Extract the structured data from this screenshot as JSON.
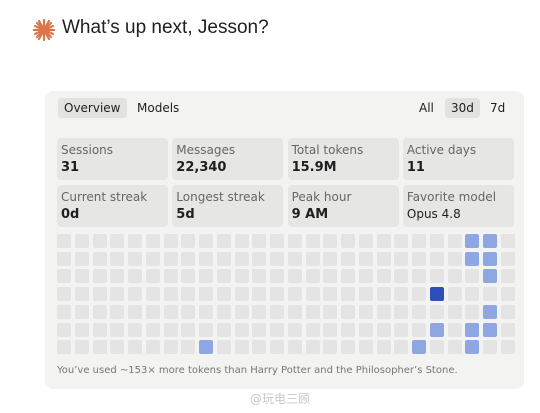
{
  "header": {
    "title": "What’s up next, Jesson?"
  },
  "tabs": [
    "Overview",
    "Models"
  ],
  "selected_tab": 0,
  "ranges": [
    "All",
    "30d",
    "7d"
  ],
  "selected_range": 1,
  "stats": [
    {
      "label": "Sessions",
      "value": "31"
    },
    {
      "label": "Messages",
      "value": "22,340"
    },
    {
      "label": "Total tokens",
      "value": "15.9M"
    },
    {
      "label": "Active days",
      "value": "11"
    },
    {
      "label": "Current streak",
      "value": "0d"
    },
    {
      "label": "Longest streak",
      "value": "5d"
    },
    {
      "label": "Peak hour",
      "value": "9 AM"
    },
    {
      "label": "Favorite model",
      "value": "Opus 4.8"
    }
  ],
  "heatmap": {
    "colors": [
      "#e4e4e4",
      "#8ea6e2",
      "#6f8fdc",
      "#2f4fb8"
    ],
    "levels": [
      [
        0,
        0,
        0,
        0,
        0,
        0,
        0,
        0,
        0,
        0,
        0,
        0,
        0,
        0,
        0,
        0,
        0,
        0,
        0,
        0,
        0,
        0,
        0,
        1,
        1,
        0
      ],
      [
        0,
        0,
        0,
        0,
        0,
        0,
        0,
        0,
        0,
        0,
        0,
        0,
        0,
        0,
        0,
        0,
        0,
        0,
        0,
        0,
        0,
        0,
        0,
        1,
        1,
        0
      ],
      [
        0,
        0,
        0,
        0,
        0,
        0,
        0,
        0,
        0,
        0,
        0,
        0,
        0,
        0,
        0,
        0,
        0,
        0,
        0,
        0,
        0,
        0,
        0,
        0,
        1,
        0
      ],
      [
        0,
        0,
        0,
        0,
        0,
        0,
        0,
        0,
        0,
        0,
        0,
        0,
        0,
        0,
        0,
        0,
        0,
        0,
        0,
        0,
        0,
        3,
        0,
        0,
        0,
        0
      ],
      [
        0,
        0,
        0,
        0,
        0,
        0,
        0,
        0,
        0,
        0,
        0,
        0,
        0,
        0,
        0,
        0,
        0,
        0,
        0,
        0,
        0,
        0,
        0,
        0,
        1,
        0
      ],
      [
        0,
        0,
        0,
        0,
        0,
        0,
        0,
        0,
        0,
        0,
        0,
        0,
        0,
        0,
        0,
        0,
        0,
        0,
        0,
        0,
        0,
        1,
        0,
        1,
        1,
        0
      ],
      [
        0,
        0,
        0,
        0,
        0,
        0,
        0,
        0,
        1,
        0,
        0,
        0,
        0,
        0,
        0,
        0,
        0,
        0,
        0,
        0,
        1,
        0,
        0,
        1,
        0,
        0
      ]
    ]
  },
  "footer": "You’ve used ~153× more tokens than Harry Potter and the Philosopher’s Stone.",
  "watermark": "@玩电三顾"
}
